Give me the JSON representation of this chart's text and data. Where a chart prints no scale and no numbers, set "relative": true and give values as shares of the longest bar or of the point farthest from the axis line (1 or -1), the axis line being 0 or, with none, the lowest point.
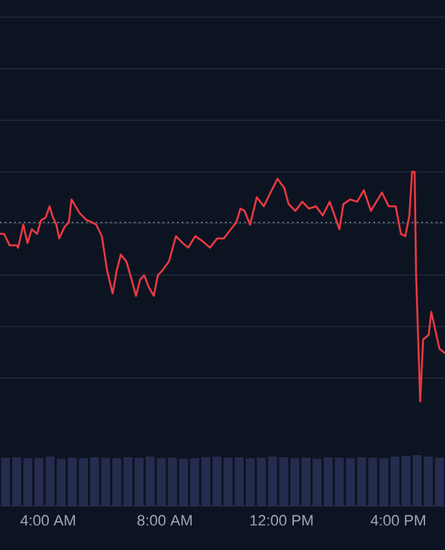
{
  "chart_data": [
    {
      "type": "line",
      "relative": true,
      "grid": true,
      "marker": "none",
      "line_style": "solid",
      "x": [
        2.35,
        2.49,
        2.68,
        2.92,
        2.97,
        3.15,
        3.29,
        3.44,
        3.62,
        3.76,
        3.91,
        4.05,
        4.14,
        4.28,
        4.38,
        4.56,
        4.71,
        4.8,
        4.94,
        5.08,
        5.32,
        5.51,
        5.65,
        5.84,
        6.02,
        6.21,
        6.35,
        6.49,
        6.68,
        6.82,
        7.01,
        7.15,
        7.29,
        7.44,
        7.62,
        7.76,
        7.91,
        8.14,
        8.38,
        8.61,
        8.8,
        9.04,
        9.27,
        9.55,
        9.79,
        10.02,
        10.26,
        10.45,
        10.59,
        10.73,
        10.92,
        11.15,
        11.39,
        11.62,
        11.86,
        12.09,
        12.24,
        12.47,
        12.71,
        12.94,
        13.18,
        13.41,
        13.65,
        13.79,
        13.98,
        14.12,
        14.35,
        14.59,
        14.82,
        15.06,
        15.44,
        15.67,
        15.91,
        16.09,
        16.24,
        16.38,
        16.47,
        16.56,
        16.61,
        16.75,
        16.85,
        17.04,
        17.13,
        17.27,
        17.41,
        17.6
      ],
      "xlim": [
        2.35,
        17.6
      ],
      "xticks": [
        {
          "value": 4,
          "label": "4:00 AM"
        },
        {
          "value": 8,
          "label": "8:00 AM"
        },
        {
          "value": 12,
          "label": "12:00 PM"
        },
        {
          "value": 16,
          "label": "4:00 PM"
        }
      ],
      "ref_lines": [
        {
          "axis": "y",
          "value": 0.78,
          "line_style": "dotted",
          "color": "#9aa0ad"
        }
      ],
      "series": [
        {
          "color": "#ea3943",
          "values": [
            0.73,
            0.73,
            0.68,
            0.68,
            0.67,
            0.77,
            0.69,
            0.75,
            0.73,
            0.79,
            0.8,
            0.85,
            0.81,
            0.77,
            0.71,
            0.76,
            0.78,
            0.88,
            0.85,
            0.82,
            0.79,
            0.78,
            0.77,
            0.72,
            0.57,
            0.47,
            0.57,
            0.64,
            0.61,
            0.55,
            0.46,
            0.53,
            0.55,
            0.5,
            0.46,
            0.55,
            0.57,
            0.61,
            0.72,
            0.69,
            0.67,
            0.72,
            0.7,
            0.67,
            0.71,
            0.71,
            0.75,
            0.78,
            0.84,
            0.83,
            0.77,
            0.89,
            0.85,
            0.91,
            0.97,
            0.93,
            0.86,
            0.83,
            0.87,
            0.84,
            0.85,
            0.81,
            0.87,
            0.82,
            0.75,
            0.86,
            0.88,
            0.87,
            0.92,
            0.83,
            0.91,
            0.85,
            0.85,
            0.73,
            0.72,
            0.81,
            1.0,
            1.0,
            0.55,
            0.0,
            0.27,
            0.29,
            0.39,
            0.31,
            0.23,
            0.21
          ]
        }
      ]
    },
    {
      "type": "bar",
      "relative": true,
      "categories": [
        null,
        null,
        null,
        null,
        null,
        null,
        null,
        null,
        null,
        null,
        null,
        null,
        null,
        null,
        null,
        null,
        null,
        null,
        null,
        null,
        null,
        null,
        null,
        null,
        null,
        null,
        null,
        null,
        null,
        null,
        null,
        null,
        null,
        null,
        null,
        null,
        null,
        null,
        null,
        null
      ],
      "series": [
        {
          "color": "#262c4e",
          "values": [
            0.95,
            0.96,
            0.94,
            0.95,
            0.97,
            0.93,
            0.95,
            0.94,
            0.96,
            0.95,
            0.94,
            0.96,
            0.95,
            0.97,
            0.94,
            0.95,
            0.93,
            0.94,
            0.96,
            0.97,
            0.95,
            0.96,
            0.94,
            0.95,
            0.97,
            0.96,
            0.94,
            0.95,
            0.93,
            0.96,
            0.95,
            0.94,
            0.96,
            0.95,
            0.94,
            0.97,
            0.98,
            1.0,
            0.97,
            0.95
          ]
        }
      ]
    }
  ]
}
